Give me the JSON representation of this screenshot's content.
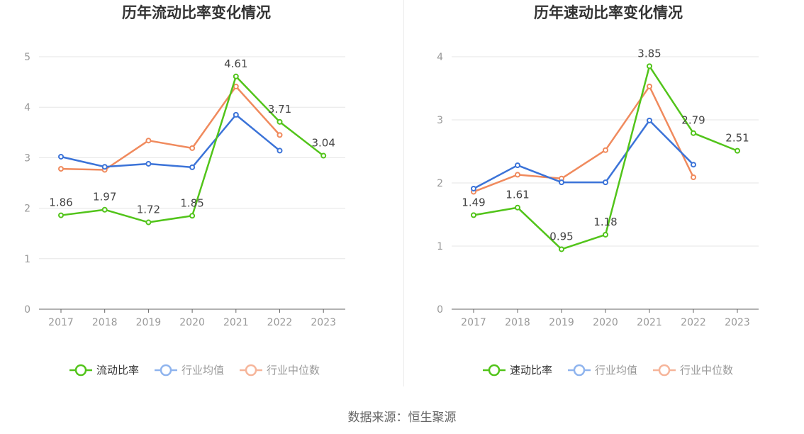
{
  "source_label": "数据来源：恒生聚源",
  "colors": {
    "company": "#52c41a",
    "industry_avg": "#3b73d8",
    "industry_median": "#f08a5d"
  },
  "chart_data": [
    {
      "type": "line",
      "title": "历年流动比率变化情况",
      "categories": [
        "2017",
        "2018",
        "2019",
        "2020",
        "2021",
        "2022",
        "2023"
      ],
      "ylim": [
        0,
        5
      ],
      "yticks": [
        0,
        1,
        2,
        3,
        4,
        5
      ],
      "series": [
        {
          "name": "流动比率",
          "values": [
            1.86,
            1.97,
            1.72,
            1.85,
            4.61,
            3.71,
            3.04
          ],
          "labels": true
        },
        {
          "name": "行业均值",
          "values": [
            3.02,
            2.82,
            2.88,
            2.81,
            3.85,
            3.14,
            null
          ],
          "labels": false
        },
        {
          "name": "行业中位数",
          "values": [
            2.78,
            2.76,
            3.34,
            3.19,
            4.41,
            3.45,
            null
          ],
          "labels": false
        }
      ]
    },
    {
      "type": "line",
      "title": "历年速动比率变化情况",
      "categories": [
        "2017",
        "2018",
        "2019",
        "2020",
        "2021",
        "2022",
        "2023"
      ],
      "ylim": [
        0,
        4
      ],
      "yticks": [
        0,
        1,
        2,
        3,
        4
      ],
      "series": [
        {
          "name": "速动比率",
          "values": [
            1.49,
            1.61,
            0.95,
            1.18,
            3.85,
            2.79,
            2.51
          ],
          "labels": true
        },
        {
          "name": "行业均值",
          "values": [
            1.91,
            2.28,
            2.01,
            2.01,
            2.99,
            2.29,
            null
          ],
          "labels": false
        },
        {
          "name": "行业中位数",
          "values": [
            1.86,
            2.13,
            2.07,
            2.52,
            3.53,
            2.09,
            null
          ],
          "labels": false
        }
      ]
    }
  ]
}
